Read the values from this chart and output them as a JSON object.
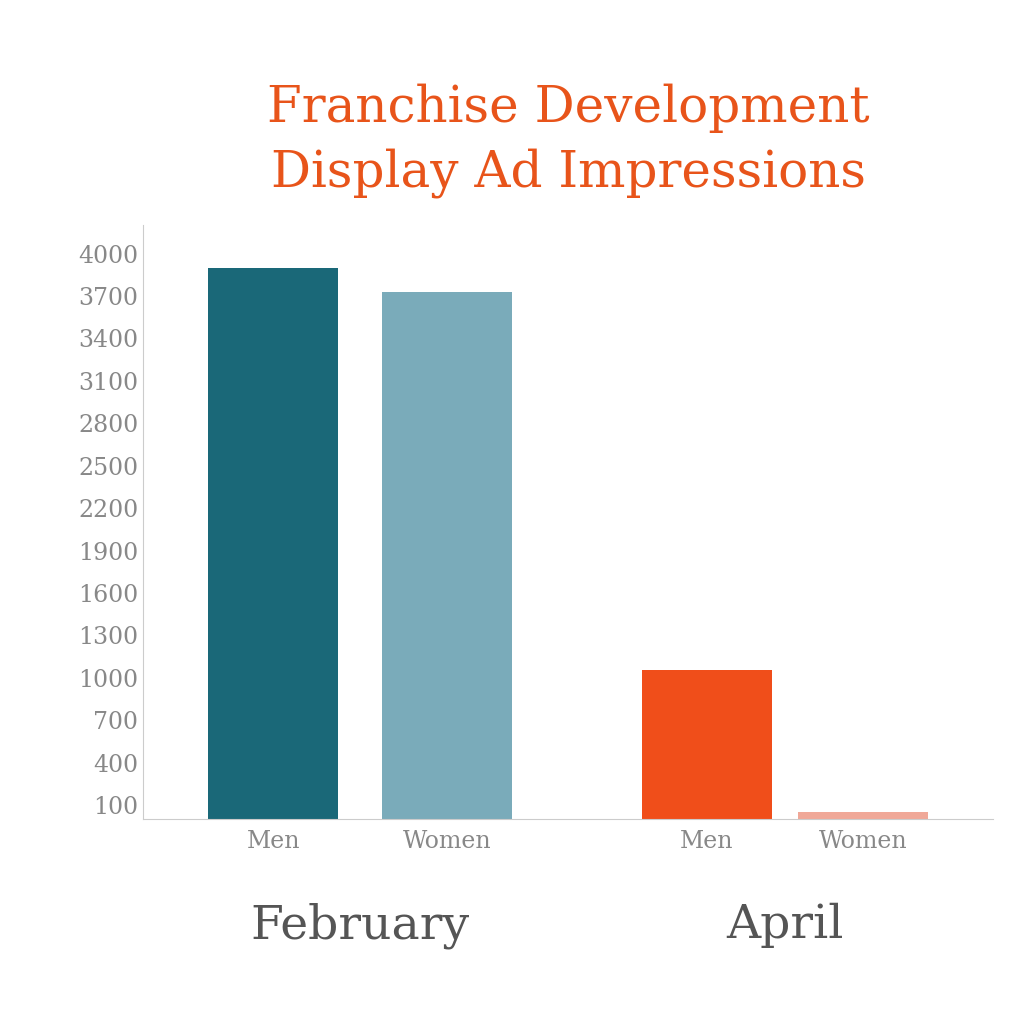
{
  "title": "Franchise Development\nDisplay Ad Impressions",
  "title_color": "#e8541a",
  "title_fontsize": 36,
  "bars": [
    {
      "label": "Men",
      "group": "February",
      "value": 3900,
      "color": "#1a6878"
    },
    {
      "label": "Women",
      "group": "February",
      "value": 3730,
      "color": "#7aabba"
    },
    {
      "label": "Men",
      "group": "April",
      "value": 1055,
      "color": "#f04e1a"
    },
    {
      "label": "Women",
      "group": "April",
      "value": 48,
      "color": "#f0a898"
    }
  ],
  "yticks": [
    100,
    400,
    700,
    1000,
    1300,
    1600,
    1900,
    2200,
    2500,
    2800,
    3100,
    3400,
    3700,
    4000
  ],
  "ylim": [
    0,
    4200
  ],
  "group_labels": [
    "February",
    "April"
  ],
  "group_label_fontsize": 34,
  "group_label_color": "#555555",
  "tick_label_fontsize": 17,
  "tick_label_color": "#888888",
  "ytick_fontsize": 17,
  "ytick_color": "#888888",
  "background_color": "#ffffff",
  "feb_men_x": 0.7,
  "feb_women_x": 1.7,
  "apr_men_x": 3.2,
  "apr_women_x": 4.1,
  "bar_width": 0.75,
  "xlim_left": -0.05,
  "xlim_right": 4.85
}
